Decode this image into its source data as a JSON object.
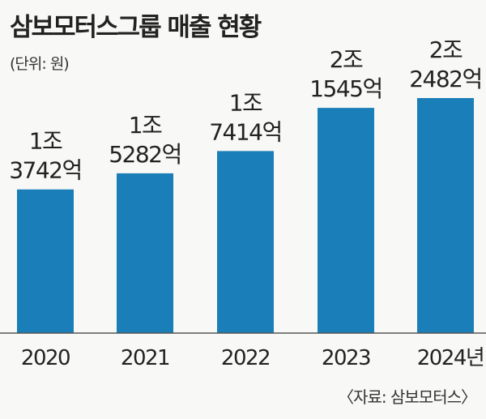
{
  "header": {
    "title": "삼보모터스그룹 매출 현황",
    "unit": "(단위: 원)"
  },
  "footer": {
    "source": "〈자료: 삼보모터스〉"
  },
  "chart_data": {
    "type": "bar",
    "title": "삼보모터스그룹 매출 현황",
    "categories": [
      "2020",
      "2021",
      "2022",
      "2023",
      "2024년"
    ],
    "values": [
      13742,
      15282,
      17414,
      21545,
      22482
    ],
    "value_labels": [
      [
        "1조",
        "3742억"
      ],
      [
        "1조",
        "5282억"
      ],
      [
        "1조",
        "7414억"
      ],
      [
        "2조",
        "1545억"
      ],
      [
        "2조",
        "2482억"
      ]
    ],
    "ylabel": "",
    "xlabel": "",
    "ylim": [
      0,
      22482
    ],
    "grid": false,
    "legend": "none",
    "colors": {
      "bar": "#1a7fb8",
      "baseline": "#555555"
    }
  }
}
